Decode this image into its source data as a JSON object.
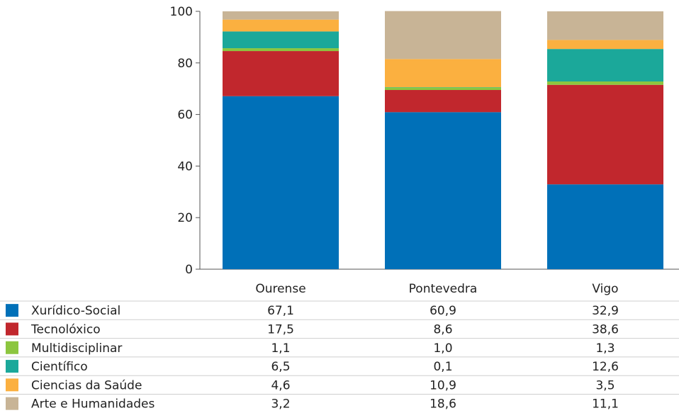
{
  "chart_data": {
    "type": "bar",
    "stacked": true,
    "categories": [
      "Ourense",
      "Pontevedra",
      "Vigo"
    ],
    "ylim": [
      0,
      100
    ],
    "yticks": [
      "0",
      "20",
      "40",
      "60",
      "80",
      "100"
    ],
    "grid": false,
    "legend": "data-table-below",
    "series": [
      {
        "name": "Xurídico-Social",
        "color": "#0070B8",
        "values": [
          67.1,
          60.9,
          32.9
        ],
        "labels": [
          "67,1",
          "60,9",
          "32,9"
        ]
      },
      {
        "name": "Tecnolóxico",
        "color": "#C1272D",
        "values": [
          17.5,
          8.6,
          38.6
        ],
        "labels": [
          "17,5",
          "8,6",
          "38,6"
        ]
      },
      {
        "name": "Multidisciplinar",
        "color": "#8CC63F",
        "values": [
          1.1,
          1.0,
          1.3
        ],
        "labels": [
          "1,1",
          "1,0",
          "1,3"
        ]
      },
      {
        "name": "Científico",
        "color": "#1BA89A",
        "values": [
          6.5,
          0.1,
          12.6
        ],
        "labels": [
          "6,5",
          "0,1",
          "12,6"
        ]
      },
      {
        "name": "Ciencias da Saúde",
        "color": "#FBB040",
        "values": [
          4.6,
          10.9,
          3.5
        ],
        "labels": [
          "4,6",
          "10,9",
          "3,5"
        ]
      },
      {
        "name": "Arte e Humanidades",
        "color": "#C8B496",
        "values": [
          3.2,
          18.6,
          11.1
        ],
        "labels": [
          "3,2",
          "18,6",
          "11,1"
        ]
      }
    ]
  }
}
